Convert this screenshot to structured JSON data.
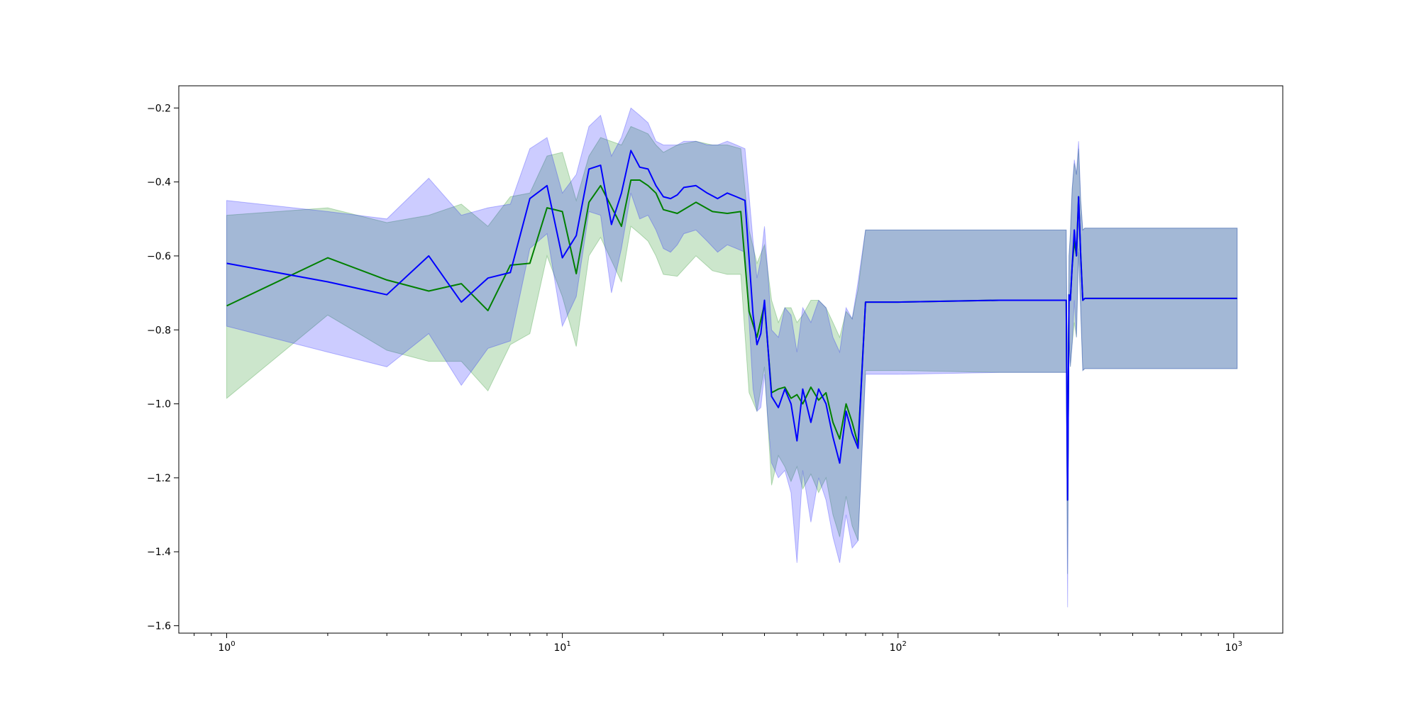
{
  "chart_data": {
    "type": "line",
    "title": "",
    "xlabel": "",
    "ylabel": "",
    "x_scale": "log",
    "xlim": [
      0.72,
      1400
    ],
    "ylim": [
      -1.62,
      -0.14
    ],
    "grid": false,
    "legend": "none",
    "x_ticks": [
      {
        "value": 1,
        "base": "10",
        "exp": "0"
      },
      {
        "value": 10,
        "base": "10",
        "exp": "1"
      },
      {
        "value": 100,
        "base": "10",
        "exp": "2"
      },
      {
        "value": 1000,
        "base": "10",
        "exp": "3"
      }
    ],
    "y_ticks": [
      {
        "value": -0.2,
        "label": "−0.2"
      },
      {
        "value": -0.4,
        "label": "−0.4"
      },
      {
        "value": -0.6,
        "label": "−0.6"
      },
      {
        "value": -0.8,
        "label": "−0.8"
      },
      {
        "value": -1.0,
        "label": "−1.0"
      },
      {
        "value": -1.2,
        "label": "−1.2"
      },
      {
        "value": -1.4,
        "label": "−1.4"
      },
      {
        "value": -1.6,
        "label": "−1.6"
      }
    ],
    "series": [
      {
        "color": "#008000",
        "band_color": "#008000",
        "x": [
          1,
          2,
          3,
          4,
          5,
          6,
          7,
          8,
          9,
          10,
          11,
          12,
          13,
          15,
          16,
          17,
          18,
          19,
          20,
          22,
          25,
          28,
          31,
          34,
          36,
          38,
          40,
          42,
          44,
          46,
          48,
          50,
          52,
          55,
          58,
          61,
          64,
          67,
          70,
          73,
          76,
          80,
          100,
          200,
          317,
          320,
          323,
          326,
          330,
          335,
          340,
          345,
          350,
          355,
          360,
          370,
          400,
          800,
          1024
        ],
        "y": [
          -0.735,
          -0.605,
          -0.665,
          -0.695,
          -0.675,
          -0.748,
          -0.625,
          -0.62,
          -0.47,
          -0.48,
          -0.648,
          -0.455,
          -0.41,
          -0.52,
          -0.395,
          -0.395,
          -0.41,
          -0.43,
          -0.475,
          -0.485,
          -0.455,
          -0.48,
          -0.485,
          -0.48,
          -0.75,
          -0.82,
          -0.73,
          -0.97,
          -0.96,
          -0.955,
          -0.985,
          -0.975,
          -1.0,
          -0.955,
          -0.99,
          -0.97,
          -1.05,
          -1.095,
          -1.0,
          -1.05,
          -1.11,
          -0.725,
          -0.725,
          -0.72,
          -0.72,
          -1.26,
          -0.705,
          -0.72,
          -0.63,
          -0.56,
          -0.6,
          -0.44,
          -0.6,
          -0.72,
          -0.715,
          -0.715,
          -0.715,
          -0.715,
          -0.715
        ],
        "upper": [
          -0.49,
          -0.47,
          -0.51,
          -0.49,
          -0.46,
          -0.52,
          -0.44,
          -0.43,
          -0.33,
          -0.32,
          -0.45,
          -0.33,
          -0.28,
          -0.3,
          -0.25,
          -0.26,
          -0.27,
          -0.3,
          -0.32,
          -0.3,
          -0.29,
          -0.3,
          -0.3,
          -0.31,
          -0.53,
          -0.62,
          -0.57,
          -0.72,
          -0.78,
          -0.74,
          -0.74,
          -0.78,
          -0.76,
          -0.72,
          -0.72,
          -0.74,
          -0.78,
          -0.82,
          -0.75,
          -0.77,
          -0.69,
          -0.53,
          -0.53,
          -0.53,
          -0.53,
          -1.05,
          -0.6,
          -0.54,
          -0.42,
          -0.35,
          -0.38,
          -0.31,
          -0.45,
          -0.53,
          -0.525,
          -0.525,
          -0.525,
          -0.525,
          -0.525
        ],
        "lower": [
          -0.985,
          -0.76,
          -0.855,
          -0.885,
          -0.885,
          -0.965,
          -0.84,
          -0.81,
          -0.6,
          -0.71,
          -0.845,
          -0.6,
          -0.55,
          -0.67,
          -0.52,
          -0.54,
          -0.56,
          -0.6,
          -0.65,
          -0.655,
          -0.6,
          -0.64,
          -0.65,
          -0.65,
          -0.97,
          -1.02,
          -0.9,
          -1.22,
          -1.14,
          -1.17,
          -1.21,
          -1.17,
          -1.23,
          -1.19,
          -1.24,
          -1.2,
          -1.3,
          -1.36,
          -1.25,
          -1.33,
          -1.37,
          -0.91,
          -0.91,
          -0.915,
          -0.915,
          -1.46,
          -0.82,
          -0.9,
          -0.84,
          -0.78,
          -0.82,
          -0.58,
          -0.75,
          -0.91,
          -0.905,
          -0.905,
          -0.905,
          -0.905,
          -0.905
        ]
      },
      {
        "color": "#0000ff",
        "band_color": "#0000ff",
        "x": [
          1,
          2,
          3,
          4,
          5,
          6,
          7,
          8,
          9,
          10,
          11,
          12,
          13,
          14,
          15,
          16,
          17,
          18,
          19,
          20,
          21,
          22,
          23,
          25,
          27,
          29,
          31,
          33,
          35,
          37,
          38,
          39,
          40,
          41,
          42,
          44,
          46,
          48,
          50,
          52,
          55,
          58,
          61,
          64,
          67,
          70,
          73,
          76,
          80,
          100,
          200,
          317,
          320,
          323,
          326,
          330,
          335,
          340,
          345,
          350,
          355,
          360,
          370,
          400,
          800,
          1024
        ],
        "y": [
          -0.62,
          -0.67,
          -0.705,
          -0.6,
          -0.725,
          -0.66,
          -0.645,
          -0.445,
          -0.41,
          -0.605,
          -0.545,
          -0.365,
          -0.355,
          -0.515,
          -0.43,
          -0.315,
          -0.36,
          -0.365,
          -0.41,
          -0.44,
          -0.445,
          -0.435,
          -0.415,
          -0.41,
          -0.43,
          -0.445,
          -0.43,
          -0.44,
          -0.45,
          -0.76,
          -0.84,
          -0.81,
          -0.72,
          -0.85,
          -0.98,
          -1.01,
          -0.96,
          -1.0,
          -1.1,
          -0.96,
          -1.05,
          -0.96,
          -1.0,
          -1.09,
          -1.16,
          -1.02,
          -1.08,
          -1.12,
          -0.725,
          -0.725,
          -0.72,
          -0.72,
          -1.26,
          -0.705,
          -0.72,
          -0.63,
          -0.53,
          -0.6,
          -0.44,
          -0.6,
          -0.72,
          -0.715,
          -0.715,
          -0.715,
          -0.715,
          -0.715
        ],
        "upper": [
          -0.45,
          -0.48,
          -0.5,
          -0.39,
          -0.49,
          -0.47,
          -0.46,
          -0.31,
          -0.28,
          -0.43,
          -0.38,
          -0.25,
          -0.22,
          -0.33,
          -0.28,
          -0.2,
          -0.22,
          -0.24,
          -0.29,
          -0.3,
          -0.3,
          -0.3,
          -0.29,
          -0.29,
          -0.3,
          -0.3,
          -0.29,
          -0.3,
          -0.31,
          -0.56,
          -0.66,
          -0.61,
          -0.52,
          -0.65,
          -0.8,
          -0.82,
          -0.74,
          -0.76,
          -0.86,
          -0.74,
          -0.78,
          -0.72,
          -0.74,
          -0.82,
          -0.86,
          -0.74,
          -0.77,
          -0.67,
          -0.53,
          -0.53,
          -0.53,
          -0.53,
          -1.05,
          -0.6,
          -0.54,
          -0.42,
          -0.34,
          -0.38,
          -0.29,
          -0.45,
          -0.53,
          -0.525,
          -0.525,
          -0.525,
          -0.525,
          -0.525
        ],
        "lower": [
          -0.79,
          -0.86,
          -0.9,
          -0.81,
          -0.95,
          -0.85,
          -0.83,
          -0.58,
          -0.54,
          -0.79,
          -0.71,
          -0.48,
          -0.49,
          -0.7,
          -0.58,
          -0.43,
          -0.5,
          -0.49,
          -0.53,
          -0.58,
          -0.59,
          -0.57,
          -0.54,
          -0.53,
          -0.56,
          -0.59,
          -0.57,
          -0.58,
          -0.59,
          -0.96,
          -1.02,
          -1.01,
          -0.92,
          -1.05,
          -1.16,
          -1.2,
          -1.18,
          -1.24,
          -1.43,
          -1.18,
          -1.32,
          -1.2,
          -1.26,
          -1.36,
          -1.43,
          -1.3,
          -1.39,
          -1.37,
          -0.92,
          -0.92,
          -0.915,
          -0.915,
          -1.55,
          -0.81,
          -0.9,
          -0.84,
          -0.72,
          -0.82,
          -0.59,
          -0.75,
          -0.91,
          -0.905,
          -0.905,
          -0.905,
          -0.905,
          -0.905
        ]
      }
    ]
  }
}
